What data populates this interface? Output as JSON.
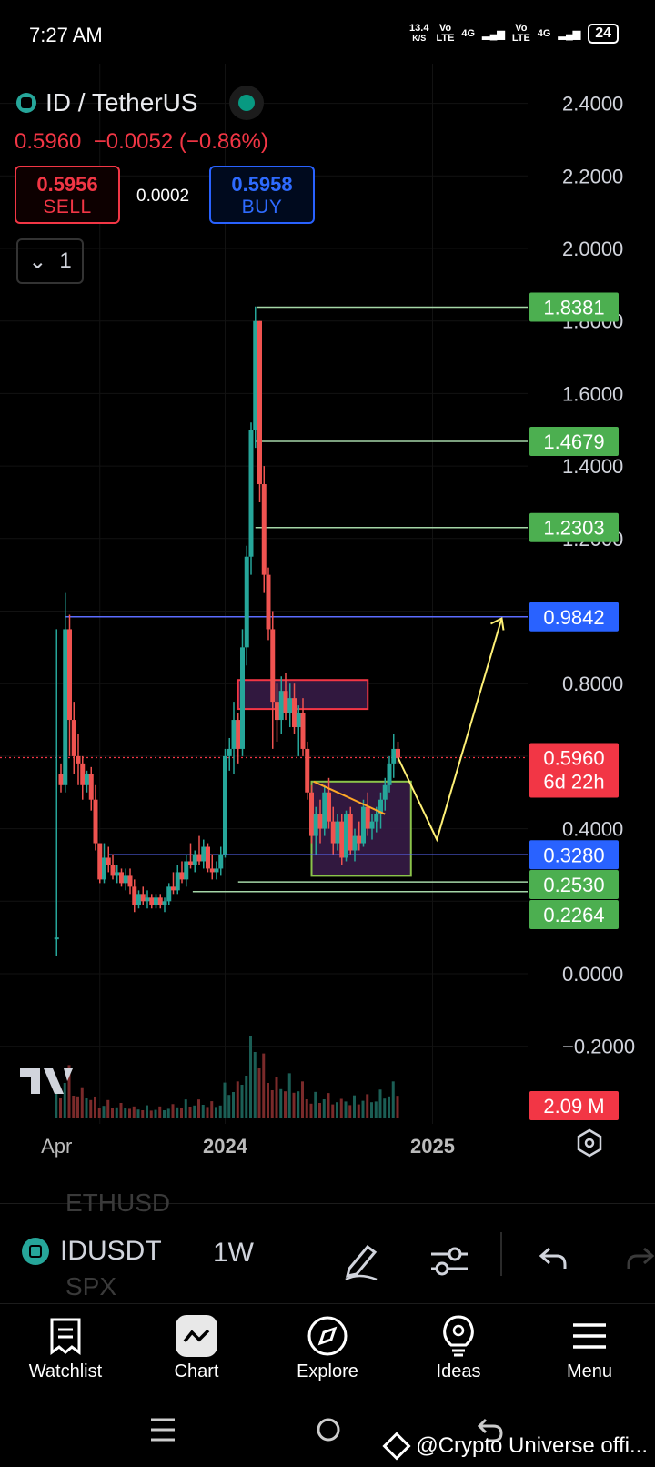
{
  "status_bar": {
    "time": "7:27 AM",
    "net_speed": "13.4",
    "net_unit": "K/S",
    "vo1": "Vo",
    "lte1": "LTE",
    "g1": "4G",
    "vo2": "Vo",
    "lte2": "LTE",
    "g2": "4G",
    "battery": "24"
  },
  "header": {
    "title": "ID / TetherUS",
    "price": "0.5960",
    "change": "−0.0052 (−0.86%)",
    "sell_value": "0.5956",
    "sell_label": "SELL",
    "spread": "0.0002",
    "buy_value": "0.5958",
    "buy_label": "BUY",
    "indicator_count": "1"
  },
  "colors": {
    "up": "#26a69a",
    "down": "#ef5350",
    "sell": "#f23645",
    "buy": "#2962ff",
    "green_tag": "#4caf50",
    "blue_tag": "#2962ff"
  },
  "chart_data": {
    "type": "candlestick",
    "symbol": "IDUSDT",
    "interval": "1W",
    "y_ticks": [
      "2.4000",
      "2.2000",
      "2.0000",
      "1.8000",
      "1.6000",
      "1.4000",
      "1.2000",
      "0.8000",
      "0.4000",
      "0.0000",
      "−0.2000"
    ],
    "x_ticks": [
      "Apr",
      "2024",
      "2025"
    ],
    "ylim": [
      -0.35,
      2.5
    ],
    "candles": [
      [
        2023.22,
        0.1,
        0.95,
        0.05,
        0.1,
        0.55
      ],
      [
        2023.24,
        0.55,
        0.58,
        0.5,
        0.52,
        0.55
      ],
      [
        2023.26,
        0.52,
        1.05,
        0.5,
        0.95,
        0.95
      ],
      [
        2023.28,
        0.95,
        0.99,
        0.6,
        0.7,
        0.9
      ],
      [
        2023.3,
        0.7,
        0.75,
        0.55,
        0.6,
        0.6
      ],
      [
        2023.32,
        0.6,
        0.66,
        0.52,
        0.58,
        0.58
      ],
      [
        2023.34,
        0.58,
        0.6,
        0.48,
        0.52,
        0.52
      ],
      [
        2023.36,
        0.52,
        0.56,
        0.5,
        0.55,
        0.55
      ],
      [
        2023.38,
        0.55,
        0.57,
        0.45,
        0.48,
        0.48
      ],
      [
        2023.4,
        0.48,
        0.52,
        0.34,
        0.36,
        0.36
      ],
      [
        2023.42,
        0.36,
        0.36,
        0.25,
        0.26,
        0.26
      ],
      [
        2023.44,
        0.26,
        0.36,
        0.25,
        0.32,
        0.32
      ],
      [
        2023.46,
        0.32,
        0.35,
        0.28,
        0.3,
        0.3
      ],
      [
        2023.48,
        0.3,
        0.33,
        0.26,
        0.27,
        0.27
      ],
      [
        2023.5,
        0.27,
        0.3,
        0.25,
        0.28,
        0.28
      ],
      [
        2023.52,
        0.28,
        0.29,
        0.24,
        0.25,
        0.25
      ],
      [
        2023.54,
        0.25,
        0.29,
        0.23,
        0.27,
        0.27
      ],
      [
        2023.56,
        0.27,
        0.29,
        0.22,
        0.24,
        0.24
      ],
      [
        2023.58,
        0.24,
        0.26,
        0.17,
        0.19,
        0.19
      ],
      [
        2023.6,
        0.19,
        0.23,
        0.18,
        0.22,
        0.22
      ],
      [
        2023.62,
        0.22,
        0.24,
        0.19,
        0.2,
        0.2
      ],
      [
        2023.64,
        0.2,
        0.23,
        0.18,
        0.21,
        0.21
      ],
      [
        2023.66,
        0.21,
        0.22,
        0.18,
        0.19,
        0.19
      ],
      [
        2023.68,
        0.19,
        0.22,
        0.18,
        0.21,
        0.21
      ],
      [
        2023.7,
        0.21,
        0.22,
        0.18,
        0.19,
        0.19
      ],
      [
        2023.72,
        0.19,
        0.21,
        0.17,
        0.2,
        0.2
      ],
      [
        2023.74,
        0.2,
        0.25,
        0.19,
        0.24,
        0.24
      ],
      [
        2023.76,
        0.24,
        0.28,
        0.22,
        0.23,
        0.23
      ],
      [
        2023.78,
        0.23,
        0.3,
        0.22,
        0.28,
        0.28
      ],
      [
        2023.8,
        0.28,
        0.31,
        0.25,
        0.26,
        0.26
      ],
      [
        2023.82,
        0.26,
        0.33,
        0.24,
        0.31,
        0.31
      ],
      [
        2023.84,
        0.31,
        0.36,
        0.29,
        0.3,
        0.3
      ],
      [
        2023.86,
        0.3,
        0.34,
        0.28,
        0.33,
        0.33
      ],
      [
        2023.88,
        0.33,
        0.38,
        0.3,
        0.31,
        0.31
      ],
      [
        2023.9,
        0.31,
        0.37,
        0.29,
        0.35,
        0.35
      ],
      [
        2023.92,
        0.35,
        0.36,
        0.28,
        0.29,
        0.29
      ],
      [
        2023.94,
        0.29,
        0.33,
        0.26,
        0.28,
        0.28
      ],
      [
        2023.96,
        0.28,
        0.31,
        0.26,
        0.29,
        0.29
      ],
      [
        2023.98,
        0.29,
        0.35,
        0.27,
        0.33,
        0.33
      ],
      [
        2024.0,
        0.33,
        0.62,
        0.32,
        0.6,
        0.6
      ],
      [
        2024.02,
        0.6,
        0.65,
        0.56,
        0.62,
        0.62
      ],
      [
        2024.04,
        0.62,
        0.75,
        0.55,
        0.7,
        0.7
      ],
      [
        2024.06,
        0.7,
        0.72,
        0.58,
        0.62,
        0.62
      ],
      [
        2024.08,
        0.62,
        0.95,
        0.6,
        0.9,
        0.9
      ],
      [
        2024.1,
        0.9,
        1.18,
        0.85,
        1.15,
        1.15
      ],
      [
        2024.12,
        1.15,
        1.52,
        1.1,
        1.5,
        1.5
      ],
      [
        2024.14,
        1.5,
        1.84,
        1.45,
        1.8,
        1.8
      ],
      [
        2024.16,
        1.8,
        1.8,
        1.3,
        1.35,
        1.35
      ],
      [
        2024.18,
        1.35,
        1.4,
        1.05,
        1.1,
        1.1
      ],
      [
        2024.2,
        1.1,
        1.12,
        0.92,
        0.95,
        0.95
      ],
      [
        2024.22,
        0.95,
        1.0,
        0.62,
        0.75,
        0.75
      ],
      [
        2024.24,
        0.75,
        0.8,
        0.64,
        0.7,
        0.7
      ],
      [
        2024.26,
        0.7,
        0.82,
        0.66,
        0.78,
        0.78
      ],
      [
        2024.28,
        0.78,
        0.83,
        0.7,
        0.72,
        0.72
      ],
      [
        2024.3,
        0.72,
        0.8,
        0.68,
        0.76,
        0.76
      ],
      [
        2024.32,
        0.76,
        0.8,
        0.66,
        0.68,
        0.68
      ],
      [
        2024.34,
        0.68,
        0.74,
        0.6,
        0.72,
        0.72
      ],
      [
        2024.36,
        0.72,
        0.76,
        0.6,
        0.62,
        0.62
      ],
      [
        2024.38,
        0.62,
        0.64,
        0.48,
        0.5,
        0.5
      ],
      [
        2024.4,
        0.5,
        0.52,
        0.36,
        0.38,
        0.38
      ],
      [
        2024.42,
        0.38,
        0.46,
        0.33,
        0.44,
        0.44
      ],
      [
        2024.44,
        0.44,
        0.48,
        0.36,
        0.4,
        0.4
      ],
      [
        2024.46,
        0.4,
        0.52,
        0.38,
        0.5,
        0.5
      ],
      [
        2024.48,
        0.5,
        0.54,
        0.4,
        0.42,
        0.42
      ],
      [
        2024.5,
        0.42,
        0.46,
        0.33,
        0.36,
        0.36
      ],
      [
        2024.52,
        0.36,
        0.44,
        0.34,
        0.42,
        0.42
      ],
      [
        2024.54,
        0.42,
        0.44,
        0.3,
        0.32,
        0.32
      ],
      [
        2024.56,
        0.32,
        0.45,
        0.31,
        0.44,
        0.44
      ],
      [
        2024.58,
        0.44,
        0.46,
        0.33,
        0.34,
        0.34
      ],
      [
        2024.6,
        0.34,
        0.4,
        0.31,
        0.38,
        0.38
      ],
      [
        2024.62,
        0.38,
        0.42,
        0.34,
        0.36,
        0.36
      ],
      [
        2024.64,
        0.36,
        0.48,
        0.35,
        0.46,
        0.46
      ],
      [
        2024.66,
        0.46,
        0.5,
        0.38,
        0.4,
        0.4
      ],
      [
        2024.68,
        0.4,
        0.44,
        0.37,
        0.42,
        0.42
      ],
      [
        2024.7,
        0.42,
        0.46,
        0.39,
        0.44,
        0.44
      ],
      [
        2024.72,
        0.44,
        0.5,
        0.4,
        0.48,
        0.48
      ],
      [
        2024.74,
        0.48,
        0.54,
        0.45,
        0.52,
        0.52
      ],
      [
        2024.76,
        0.52,
        0.6,
        0.5,
        0.58,
        0.58
      ],
      [
        2024.78,
        0.58,
        0.66,
        0.54,
        0.62,
        0.62
      ],
      [
        2024.8,
        0.62,
        0.64,
        0.58,
        0.596,
        0.596
      ]
    ],
    "horizontal_levels": [
      {
        "label": "1.8381",
        "value": 1.8381,
        "color": "green_tag"
      },
      {
        "label": "1.4679",
        "value": 1.4679,
        "color": "green_tag"
      },
      {
        "label": "1.2303",
        "value": 1.2303,
        "color": "green_tag"
      },
      {
        "label": "0.9842",
        "value": 0.9842,
        "color": "blue_tag"
      },
      {
        "label": "0.3280",
        "value": 0.328,
        "color": "blue_tag"
      },
      {
        "label": "0.2530",
        "value": 0.253,
        "color": "green_tag"
      },
      {
        "label": "0.2264",
        "value": 0.2264,
        "color": "green_tag"
      }
    ],
    "current_price_label": "0.5960",
    "countdown_label": "6d 22h",
    "volume_label": "2.09 M",
    "projection": [
      [
        2024.8,
        0.596
      ],
      [
        2024.98,
        0.37
      ],
      [
        2025.28,
        0.98
      ]
    ],
    "zones": [
      {
        "x0": 2024.06,
        "x1": 2024.66,
        "y0": 0.73,
        "y1": 0.81,
        "color": "#f23645"
      },
      {
        "x0": 2024.4,
        "x1": 2024.86,
        "y0": 0.27,
        "y1": 0.53,
        "color": "#8bc34a"
      }
    ]
  },
  "toolbar": {
    "symbol": "IDUSDT",
    "interval": "1W",
    "ghost_top": "ETHUSD",
    "ghost_bottom": "SPX"
  },
  "nav": [
    {
      "label": "Watchlist",
      "icon": "watchlist-icon"
    },
    {
      "label": "Chart",
      "icon": "chart-icon"
    },
    {
      "label": "Explore",
      "icon": "compass-icon"
    },
    {
      "label": "Ideas",
      "icon": "lightbulb-icon"
    },
    {
      "label": "Menu",
      "icon": "menu-icon"
    }
  ],
  "watermark": "@Crypto Universe offi..."
}
